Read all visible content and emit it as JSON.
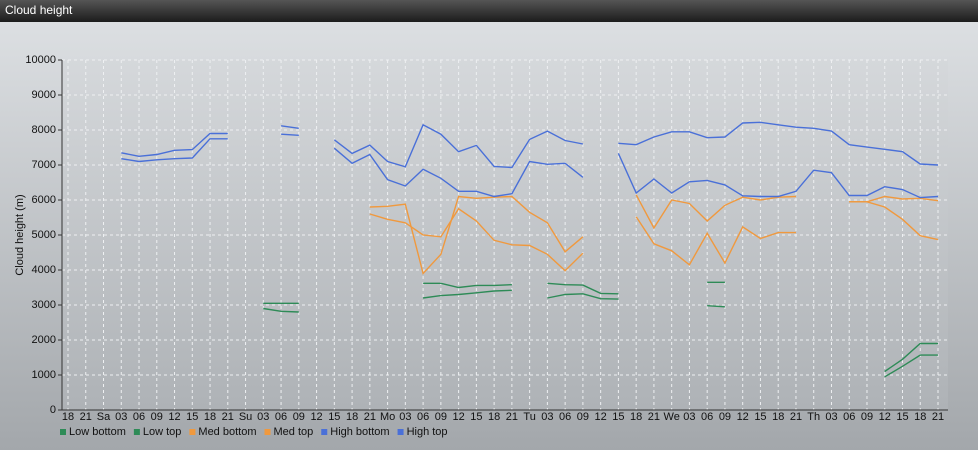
{
  "chart_data": {
    "type": "line",
    "title": "Cloud height",
    "y_label": "Cloud height (m)",
    "ylim": [
      0,
      10000
    ],
    "yticks": [
      0,
      1000,
      2000,
      3000,
      4000,
      5000,
      6000,
      7000,
      8000,
      9000,
      10000
    ],
    "grid": true,
    "legend": "bottom-left",
    "categories": [
      "18",
      "21",
      "Sa",
      "03",
      "06",
      "09",
      "12",
      "15",
      "18",
      "21",
      "Su",
      "03",
      "06",
      "09",
      "12",
      "15",
      "18",
      "21",
      "Mo",
      "03",
      "06",
      "09",
      "12",
      "15",
      "18",
      "21",
      "Tu",
      "03",
      "06",
      "09",
      "12",
      "15",
      "18",
      "21",
      "We",
      "03",
      "06",
      "09",
      "12",
      "15",
      "18",
      "21",
      "Th",
      "03",
      "06",
      "09",
      "12",
      "15",
      "18",
      "21"
    ],
    "series": [
      {
        "name": "Low bottom",
        "color": "#2e8b57",
        "values": [
          null,
          null,
          null,
          null,
          null,
          null,
          null,
          null,
          null,
          null,
          null,
          2900,
          2820,
          2800,
          null,
          null,
          null,
          null,
          null,
          null,
          3200,
          3270,
          3300,
          3350,
          3400,
          3420,
          null,
          3200,
          3300,
          3320,
          3180,
          3170,
          null,
          null,
          null,
          null,
          2980,
          2950,
          null,
          null,
          null,
          null,
          null,
          null,
          null,
          null,
          950,
          1250,
          1570,
          1570
        ]
      },
      {
        "name": "Low top",
        "color": "#2e8b57",
        "values": [
          null,
          null,
          null,
          null,
          null,
          null,
          null,
          null,
          null,
          null,
          null,
          3050,
          3050,
          3050,
          null,
          null,
          null,
          null,
          null,
          null,
          3620,
          3620,
          3500,
          3560,
          3560,
          3580,
          null,
          3620,
          3580,
          3570,
          3330,
          3320,
          null,
          null,
          null,
          null,
          3650,
          3650,
          null,
          null,
          null,
          null,
          null,
          null,
          null,
          null,
          1100,
          1450,
          1900,
          1900
        ]
      },
      {
        "name": "Med bottom",
        "color": "#f0993e",
        "values": [
          null,
          null,
          null,
          null,
          null,
          null,
          null,
          null,
          null,
          null,
          null,
          null,
          null,
          null,
          null,
          null,
          null,
          5600,
          5450,
          5350,
          5000,
          4950,
          5750,
          5400,
          4850,
          4720,
          4700,
          4450,
          3980,
          4480,
          null,
          null,
          5520,
          4750,
          4550,
          4150,
          5050,
          4200,
          5230,
          4900,
          5070,
          5070,
          null,
          null,
          5950,
          5950,
          5800,
          5450,
          4980,
          4870
        ]
      },
      {
        "name": "Med top",
        "color": "#f0993e",
        "values": [
          null,
          null,
          null,
          null,
          null,
          null,
          null,
          null,
          null,
          null,
          null,
          null,
          null,
          null,
          null,
          null,
          null,
          5800,
          5820,
          5880,
          3900,
          4450,
          6100,
          6050,
          6080,
          6100,
          5650,
          5350,
          4520,
          4950,
          null,
          null,
          6150,
          5200,
          6000,
          5900,
          5400,
          5850,
          6080,
          6000,
          6080,
          6100,
          null,
          null,
          5950,
          5950,
          6100,
          6030,
          6050,
          5980
        ]
      },
      {
        "name": "High bottom",
        "color": "#4a70d8",
        "values": [
          null,
          null,
          null,
          7180,
          7100,
          7150,
          7180,
          7200,
          7750,
          7750,
          null,
          null,
          7880,
          7850,
          null,
          7480,
          7050,
          7300,
          6580,
          6400,
          6880,
          6620,
          6250,
          6250,
          6100,
          6180,
          7100,
          7020,
          7050,
          6650,
          null,
          7330,
          6200,
          6600,
          6200,
          6520,
          6560,
          6430,
          6120,
          6100,
          6100,
          6250,
          6850,
          6780,
          6130,
          6130,
          6380,
          6300,
          6070,
          6100
        ]
      },
      {
        "name": "High top",
        "color": "#4a70d8",
        "values": [
          null,
          null,
          null,
          7350,
          7250,
          7300,
          7420,
          7440,
          7900,
          7900,
          null,
          null,
          8120,
          8050,
          null,
          7720,
          7330,
          7570,
          7100,
          6950,
          8150,
          7880,
          7380,
          7560,
          6960,
          6930,
          7730,
          7970,
          7700,
          7600,
          null,
          7620,
          7580,
          7800,
          7950,
          7950,
          7780,
          7800,
          8200,
          8220,
          8150,
          8080,
          8050,
          7970,
          7580,
          7510,
          7450,
          7380,
          7030,
          7000
        ]
      }
    ]
  }
}
